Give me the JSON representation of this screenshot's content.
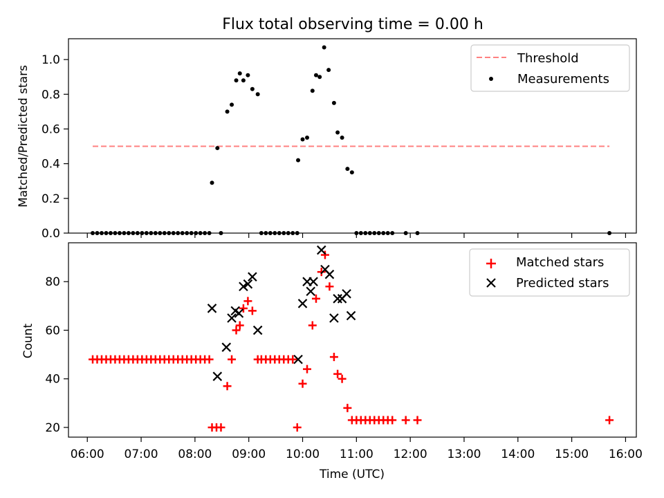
{
  "figure_title": "Flux total observing time = 0.00 h",
  "chart_data": [
    {
      "type": "scatter",
      "ylabel": "Matched/Predicted stars",
      "ylim": [
        0,
        1.12
      ],
      "yticks": [
        0.0,
        0.2,
        0.4,
        0.6,
        0.8,
        1.0
      ],
      "ytick_labels": [
        "0.0",
        "0.2",
        "0.4",
        "0.6",
        "0.8",
        "1.0"
      ],
      "xlim_hours": [
        5.65,
        16.2
      ],
      "legend_position": "top-right",
      "threshold": {
        "name": "Threshold",
        "value": 0.5,
        "x_range_hours": [
          6.1,
          15.7
        ],
        "color": "#ff8080"
      },
      "series": [
        {
          "name": "Measurements",
          "color": "#000000",
          "points": [
            [
              "06:06",
              0
            ],
            [
              "06:11",
              0
            ],
            [
              "06:16",
              0
            ],
            [
              "06:21",
              0
            ],
            [
              "06:26",
              0
            ],
            [
              "06:31",
              0
            ],
            [
              "06:36",
              0
            ],
            [
              "06:41",
              0
            ],
            [
              "06:46",
              0
            ],
            [
              "06:51",
              0
            ],
            [
              "06:56",
              0
            ],
            [
              "07:01",
              0
            ],
            [
              "07:06",
              0
            ],
            [
              "07:11",
              0
            ],
            [
              "07:16",
              0
            ],
            [
              "07:21",
              0
            ],
            [
              "07:26",
              0
            ],
            [
              "07:31",
              0
            ],
            [
              "07:36",
              0
            ],
            [
              "07:41",
              0
            ],
            [
              "07:46",
              0
            ],
            [
              "07:51",
              0
            ],
            [
              "07:56",
              0
            ],
            [
              "08:01",
              0
            ],
            [
              "08:06",
              0
            ],
            [
              "08:11",
              0
            ],
            [
              "08:16",
              0
            ],
            [
              "08:19",
              0.29
            ],
            [
              "08:25",
              0.49
            ],
            [
              "08:29",
              0
            ],
            [
              "08:36",
              0.7
            ],
            [
              "08:41",
              0.74
            ],
            [
              "08:46",
              0.88
            ],
            [
              "08:50",
              0.92
            ],
            [
              "08:54",
              0.88
            ],
            [
              "08:59",
              0.91
            ],
            [
              "09:04",
              0.83
            ],
            [
              "09:10",
              0.8
            ],
            [
              "09:14",
              0
            ],
            [
              "09:19",
              0
            ],
            [
              "09:24",
              0
            ],
            [
              "09:29",
              0
            ],
            [
              "09:34",
              0
            ],
            [
              "09:39",
              0
            ],
            [
              "09:44",
              0
            ],
            [
              "09:49",
              0
            ],
            [
              "09:54",
              0
            ],
            [
              "09:55",
              0.42
            ],
            [
              "10:00",
              0.54
            ],
            [
              "10:05",
              0.55
            ],
            [
              "10:11",
              0.82
            ],
            [
              "10:15",
              0.91
            ],
            [
              "10:19",
              0.9
            ],
            [
              "10:24",
              1.07
            ],
            [
              "10:29",
              0.94
            ],
            [
              "10:35",
              0.75
            ],
            [
              "10:39",
              0.58
            ],
            [
              "10:44",
              0.55
            ],
            [
              "10:50",
              0.37
            ],
            [
              "10:55",
              0.35
            ],
            [
              "11:00",
              0
            ],
            [
              "11:05",
              0
            ],
            [
              "11:10",
              0
            ],
            [
              "11:15",
              0
            ],
            [
              "11:20",
              0
            ],
            [
              "11:25",
              0
            ],
            [
              "11:30",
              0
            ],
            [
              "11:35",
              0
            ],
            [
              "11:40",
              0
            ],
            [
              "11:55",
              0
            ],
            [
              "12:08",
              0
            ],
            [
              "15:42",
              0
            ]
          ]
        }
      ]
    },
    {
      "type": "scatter",
      "xlabel": "Time (UTC)",
      "ylabel": "Count",
      "ylim": [
        16,
        96
      ],
      "yticks": [
        20,
        40,
        60,
        80
      ],
      "ytick_labels": [
        "20",
        "40",
        "60",
        "80"
      ],
      "xlim_hours": [
        5.65,
        16.2
      ],
      "xticks_hours": [
        6,
        7,
        8,
        9,
        10,
        11,
        12,
        13,
        14,
        15,
        16
      ],
      "xtick_labels": [
        "06:00",
        "07:00",
        "08:00",
        "09:00",
        "10:00",
        "11:00",
        "12:00",
        "13:00",
        "14:00",
        "15:00",
        "16:00"
      ],
      "legend_position": "top-right",
      "series": [
        {
          "name": "Matched stars",
          "color": "#ff0000",
          "marker": "plus",
          "points": [
            [
              "06:06",
              48
            ],
            [
              "06:11",
              48
            ],
            [
              "06:16",
              48
            ],
            [
              "06:21",
              48
            ],
            [
              "06:26",
              48
            ],
            [
              "06:31",
              48
            ],
            [
              "06:36",
              48
            ],
            [
              "06:41",
              48
            ],
            [
              "06:46",
              48
            ],
            [
              "06:51",
              48
            ],
            [
              "06:56",
              48
            ],
            [
              "07:01",
              48
            ],
            [
              "07:06",
              48
            ],
            [
              "07:11",
              48
            ],
            [
              "07:16",
              48
            ],
            [
              "07:21",
              48
            ],
            [
              "07:26",
              48
            ],
            [
              "07:31",
              48
            ],
            [
              "07:36",
              48
            ],
            [
              "07:41",
              48
            ],
            [
              "07:46",
              48
            ],
            [
              "07:51",
              48
            ],
            [
              "07:56",
              48
            ],
            [
              "08:01",
              48
            ],
            [
              "08:06",
              48
            ],
            [
              "08:11",
              48
            ],
            [
              "08:16",
              48
            ],
            [
              "08:19",
              20
            ],
            [
              "08:24",
              20
            ],
            [
              "08:29",
              20
            ],
            [
              "08:36",
              37
            ],
            [
              "08:41",
              48
            ],
            [
              "08:46",
              60
            ],
            [
              "08:50",
              62
            ],
            [
              "08:54",
              69
            ],
            [
              "08:59",
              72
            ],
            [
              "09:04",
              68
            ],
            [
              "09:10",
              48
            ],
            [
              "09:14",
              48
            ],
            [
              "09:19",
              48
            ],
            [
              "09:24",
              48
            ],
            [
              "09:29",
              48
            ],
            [
              "09:34",
              48
            ],
            [
              "09:39",
              48
            ],
            [
              "09:44",
              48
            ],
            [
              "09:49",
              48
            ],
            [
              "09:54",
              20
            ],
            [
              "10:00",
              38
            ],
            [
              "10:05",
              44
            ],
            [
              "10:11",
              62
            ],
            [
              "10:15",
              73
            ],
            [
              "10:21",
              84
            ],
            [
              "10:25",
              91
            ],
            [
              "10:30",
              78
            ],
            [
              "10:35",
              49
            ],
            [
              "10:39",
              42
            ],
            [
              "10:44",
              40
            ],
            [
              "10:50",
              28
            ],
            [
              "10:55",
              23
            ],
            [
              "11:00",
              23
            ],
            [
              "11:05",
              23
            ],
            [
              "11:10",
              23
            ],
            [
              "11:15",
              23
            ],
            [
              "11:20",
              23
            ],
            [
              "11:25",
              23
            ],
            [
              "11:30",
              23
            ],
            [
              "11:35",
              23
            ],
            [
              "11:40",
              23
            ],
            [
              "11:55",
              23
            ],
            [
              "12:08",
              23
            ],
            [
              "15:42",
              23
            ]
          ]
        },
        {
          "name": "Predicted stars",
          "color": "#000000",
          "marker": "x",
          "points": [
            [
              "08:19",
              69
            ],
            [
              "08:25",
              41
            ],
            [
              "08:35",
              53
            ],
            [
              "08:41",
              65
            ],
            [
              "08:45",
              68
            ],
            [
              "08:49",
              67
            ],
            [
              "08:54",
              78
            ],
            [
              "08:59",
              79
            ],
            [
              "09:04",
              82
            ],
            [
              "09:10",
              60
            ],
            [
              "09:55",
              48
            ],
            [
              "10:00",
              71
            ],
            [
              "10:05",
              80
            ],
            [
              "10:09",
              76
            ],
            [
              "10:12",
              80
            ],
            [
              "10:21",
              93
            ],
            [
              "10:25",
              85
            ],
            [
              "10:30",
              83
            ],
            [
              "10:35",
              65
            ],
            [
              "10:39",
              73
            ],
            [
              "10:44",
              73
            ],
            [
              "10:49",
              75
            ],
            [
              "10:54",
              66
            ]
          ]
        }
      ]
    }
  ]
}
